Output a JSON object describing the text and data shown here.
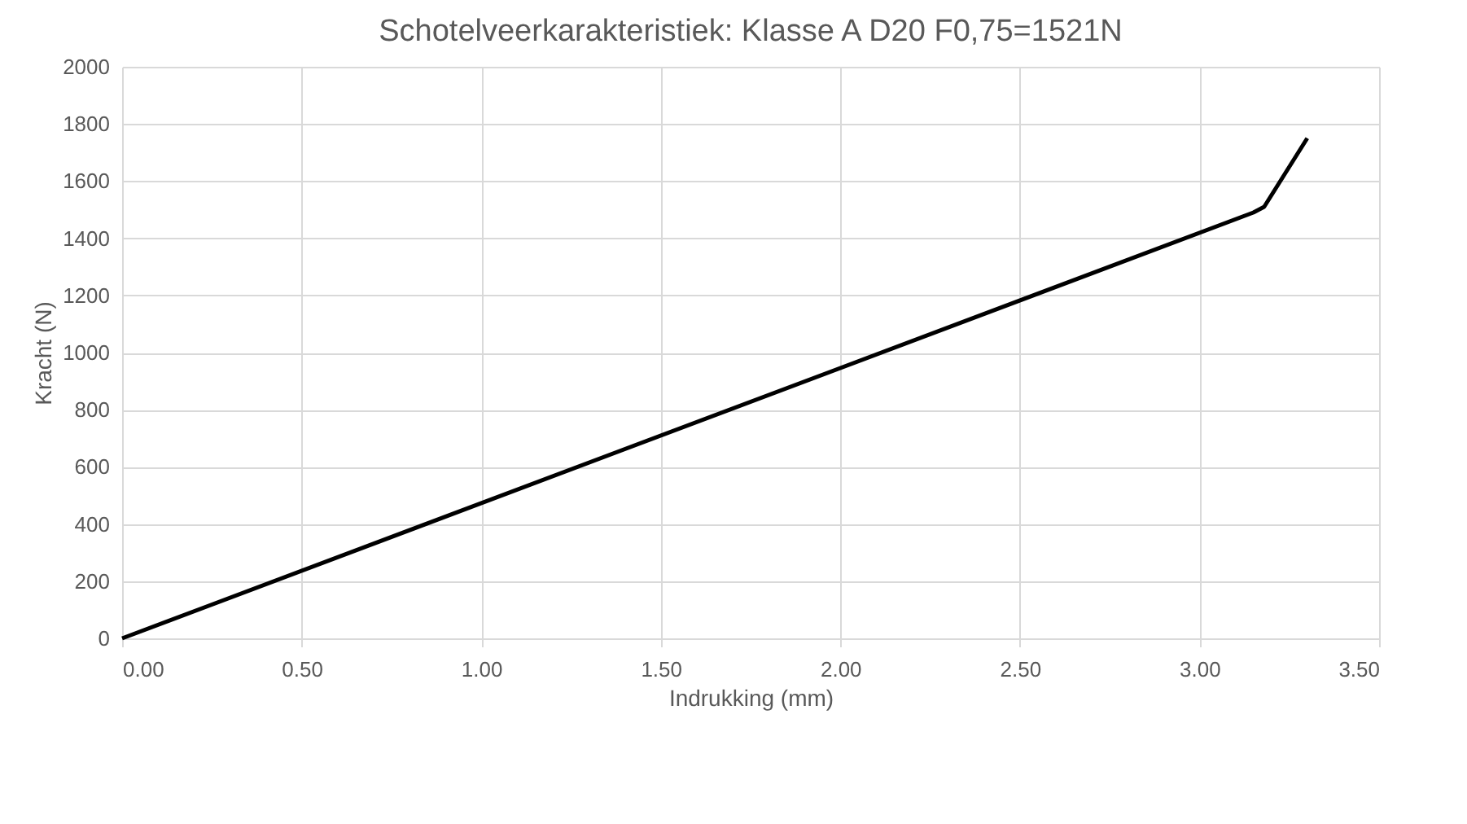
{
  "chart_data": {
    "type": "line",
    "title": "Schotelveerkarakteristiek: Klasse A D20  F0,75=1521N",
    "xlabel": "Indrukking (mm)",
    "ylabel": "Kracht (N)",
    "series": [
      {
        "color": "#000000",
        "x": [
          0,
          3.15,
          3.18,
          3.3
        ],
        "values": [
          0,
          1490,
          1510,
          1750
        ]
      }
    ],
    "xlim": [
      0,
      3.5
    ],
    "xticks": [
      {
        "value": 0,
        "label": "0.00"
      },
      {
        "value": 0.5,
        "label": "0.50"
      },
      {
        "value": 1,
        "label": "1.00"
      },
      {
        "value": 1.5,
        "label": "1.50"
      },
      {
        "value": 2,
        "label": "2.00"
      },
      {
        "value": 2.5,
        "label": "2.50"
      },
      {
        "value": 3,
        "label": "3.00"
      },
      {
        "value": 3.5,
        "label": "3.50"
      }
    ],
    "ylim": [
      0,
      2000
    ],
    "yticks": [
      0,
      200,
      400,
      600,
      800,
      1000,
      1200,
      1400,
      1600,
      1800,
      2000
    ],
    "grid": true,
    "legend": false,
    "marker": "none",
    "line_style": "solid"
  }
}
